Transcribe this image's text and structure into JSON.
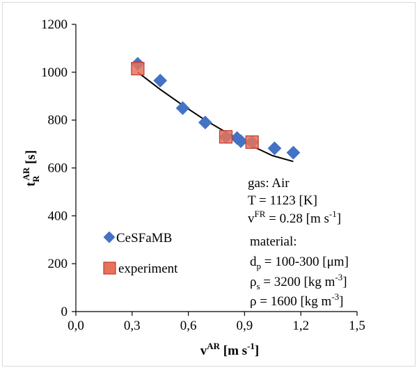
{
  "chart_data": {
    "type": "scatter",
    "xlabel": {
      "base": "v",
      "sup": "AR",
      "unit_pre": " [m s",
      "unit_sup": "-1",
      "unit_post": "]"
    },
    "ylabel": {
      "base": "t",
      "sub": "R",
      "sup": "AR",
      "unit": " [s]"
    },
    "xlim": [
      0.0,
      1.5
    ],
    "ylim": [
      0,
      1200
    ],
    "xticks": [
      "0,0",
      "0,3",
      "0,6",
      "0,9",
      "1,2",
      "1,5"
    ],
    "yticks": [
      "0",
      "200",
      "400",
      "600",
      "800",
      "1000",
      "1200"
    ],
    "grid": false,
    "legend_position": "bottom-left",
    "series": [
      {
        "name": "CeSFaMB",
        "marker": "diamond",
        "color": "#4472c4",
        "x": [
          0.33,
          0.45,
          0.57,
          0.69,
          0.8,
          0.86,
          0.88,
          0.94,
          1.06,
          1.16
        ],
        "y": [
          1035,
          965,
          850,
          790,
          730,
          725,
          712,
          708,
          682,
          664
        ]
      },
      {
        "name": "experiment",
        "marker": "square",
        "color": "#e8735a",
        "edge": "#c0392b",
        "x": [
          0.33,
          0.8,
          0.94
        ],
        "y": [
          1015,
          730,
          708
        ]
      }
    ],
    "fit_curve": {
      "color": "#000000",
      "x": [
        0.33,
        0.45,
        0.57,
        0.69,
        0.81,
        0.93,
        1.05,
        1.16
      ],
      "y": [
        1000,
        928,
        862,
        800,
        745,
        695,
        651,
        627
      ]
    },
    "annotations": {
      "gas": [
        {
          "t": "gas: Air"
        },
        {
          "t": "T = 1123 [K]"
        },
        {
          "t": "v",
          "sup": "FR",
          "rest": " = 0.28 [m s",
          "sup2": "-1",
          "end": "]"
        }
      ],
      "material": [
        {
          "t": "material:"
        },
        {
          "t": "d",
          "sub": "p",
          "rest": " = 100-300 [μm]"
        },
        {
          "t": "ρ",
          "sub": "s",
          "rest": " = 3200 [kg m",
          "sup2": "-3",
          "end": "]"
        },
        {
          "t": "ρ",
          "rest": " = 1600 [kg m",
          "sup2": "-3",
          "end": "]"
        }
      ]
    }
  }
}
